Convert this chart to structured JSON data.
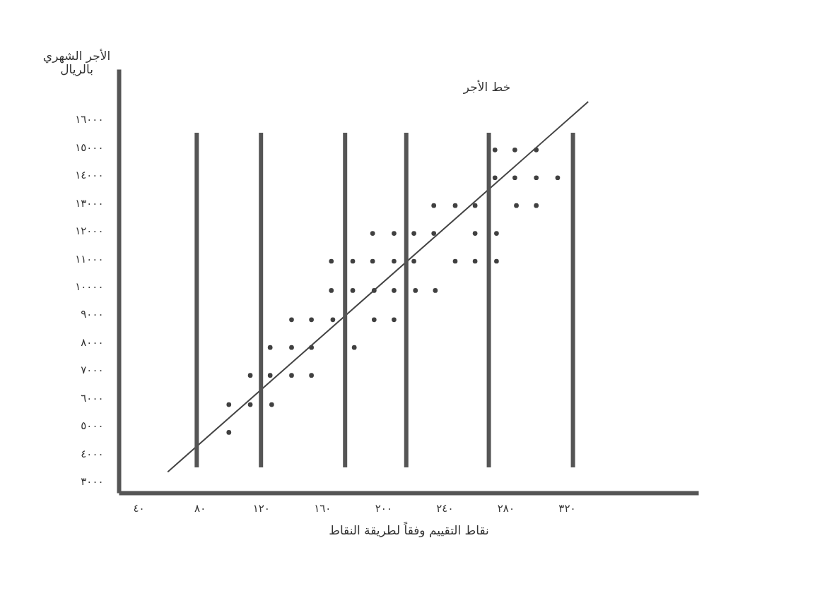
{
  "chart_data": {
    "type": "scatter",
    "xlabel": "نقاط التقييم وفقاً لطريقة النقاط",
    "ylabel": "الأجر الشهري\nبالريال",
    "xlim": [
      27,
      406
    ],
    "ylim": [
      2580,
      17800
    ],
    "xticks": [
      {
        "value": 40,
        "label": "٤٠"
      },
      {
        "value": 80,
        "label": "٨٠"
      },
      {
        "value": 120,
        "label": "١٢٠"
      },
      {
        "value": 160,
        "label": "١٦٠"
      },
      {
        "value": 200,
        "label": "٢٠٠"
      },
      {
        "value": 240,
        "label": "٢٤٠"
      },
      {
        "value": 280,
        "label": "٢٨٠"
      },
      {
        "value": 320,
        "label": "٣٢٠"
      }
    ],
    "yticks": [
      {
        "value": 3000,
        "label": "٣٠٠٠"
      },
      {
        "value": 4000,
        "label": "٤٠٠٠"
      },
      {
        "value": 5000,
        "label": "٥٠٠٠"
      },
      {
        "value": 6000,
        "label": "٦٠٠٠"
      },
      {
        "value": 7000,
        "label": "٧٠٠٠"
      },
      {
        "value": 8000,
        "label": "٨٠٠٠"
      },
      {
        "value": 9000,
        "label": "٩٠٠٠"
      },
      {
        "value": 10000,
        "label": "١٠٠٠٠"
      },
      {
        "value": 11000,
        "label": "١١٠٠٠"
      },
      {
        "value": 12000,
        "label": "١٢٠٠٠"
      },
      {
        "value": 13000,
        "label": "١٣٠٠٠"
      },
      {
        "value": 14000,
        "label": "١٤٠٠٠"
      },
      {
        "value": 15000,
        "label": "١٥٠٠٠"
      },
      {
        "value": 16000,
        "label": "١٦٠٠٠"
      }
    ],
    "grid": false,
    "series": [
      {
        "type": "scatter",
        "marker": "circle",
        "color": "#404040",
        "x": [
          273,
          286,
          300,
          273,
          286,
          300,
          314,
          233,
          247,
          260,
          287,
          300,
          193,
          207,
          220,
          233,
          260,
          274,
          166,
          180,
          193,
          207,
          220,
          247,
          260,
          274,
          166,
          180,
          194,
          207,
          221,
          234,
          140,
          153,
          167,
          194,
          207,
          126,
          140,
          153,
          181,
          113,
          126,
          140,
          153,
          99,
          113,
          127,
          99
        ],
        "values": [
          14900,
          14900,
          14900,
          13900,
          13900,
          13900,
          13900,
          12900,
          12900,
          12900,
          12900,
          12900,
          11900,
          11900,
          11900,
          11900,
          11900,
          11900,
          10900,
          10900,
          10900,
          10900,
          10900,
          10900,
          10900,
          10900,
          9850,
          9850,
          9850,
          9850,
          9850,
          9850,
          8800,
          8800,
          8800,
          8800,
          8800,
          7800,
          7800,
          7800,
          7800,
          6800,
          6800,
          6800,
          6800,
          5750,
          5750,
          5750,
          4750
        ]
      },
      {
        "type": "line",
        "name": "خط الأجر",
        "color": "#444444",
        "line_style": "solid",
        "marker": "none",
        "x": [
          59,
          334
        ],
        "values": [
          3330,
          16630
        ]
      }
    ],
    "ref_lines": [
      {
        "axis": "x",
        "value": 78,
        "color": "#555555"
      },
      {
        "axis": "x",
        "value": 120,
        "color": "#555555"
      },
      {
        "axis": "x",
        "value": 175,
        "color": "#555555"
      },
      {
        "axis": "x",
        "value": 215,
        "color": "#555555"
      },
      {
        "axis": "x",
        "value": 269,
        "color": "#555555"
      },
      {
        "axis": "x",
        "value": 324,
        "color": "#555555"
      }
    ]
  }
}
